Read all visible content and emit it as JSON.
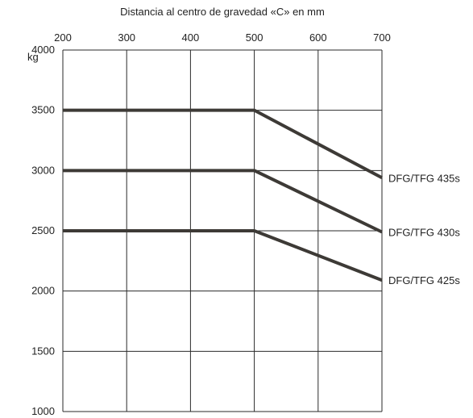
{
  "chart_data": {
    "type": "line",
    "title": "Distancia al centro de gravedad «C» en mm",
    "xlabel": "Distancia al centro de gravedad «C» en mm",
    "ylabel": "kg",
    "x_ticks": [
      200,
      300,
      400,
      500,
      600,
      700
    ],
    "y_ticks": [
      4000,
      3500,
      3000,
      2500,
      2000,
      1500,
      1000
    ],
    "xlim": [
      200,
      700
    ],
    "ylim": [
      1000,
      4000
    ],
    "x_axis_position": "top",
    "grid": true,
    "series": [
      {
        "name": "DFG/TFG 435s",
        "x": [
          200,
          500,
          700
        ],
        "y": [
          3500,
          3500,
          2940
        ]
      },
      {
        "name": "DFG/TFG 430s",
        "x": [
          200,
          500,
          700
        ],
        "y": [
          3000,
          3000,
          2490
        ]
      },
      {
        "name": "DFG/TFG 425s",
        "x": [
          200,
          500,
          700
        ],
        "y": [
          2500,
          2500,
          2090
        ]
      }
    ]
  }
}
